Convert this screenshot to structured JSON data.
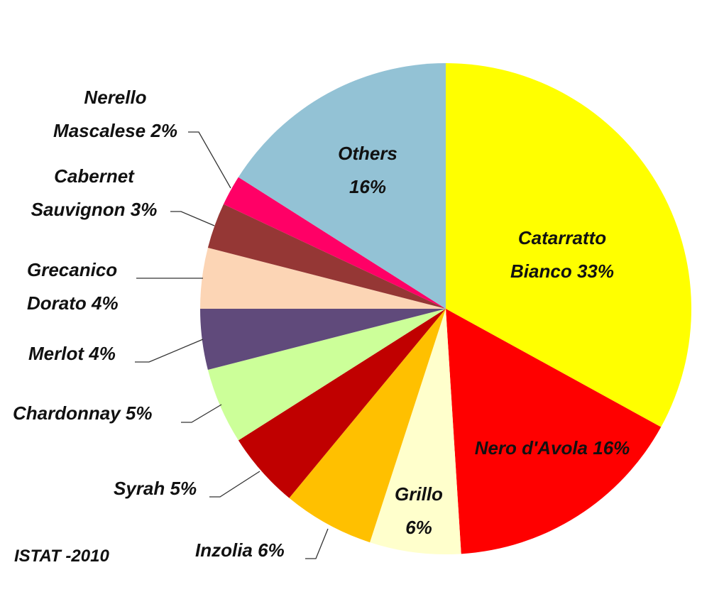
{
  "chart_data": {
    "type": "pie",
    "categories": [
      "Catarratto Bianco",
      "Nero d'Avola",
      "Grillo",
      "Inzolia",
      "Syrah",
      "Chardonnay",
      "Merlot",
      "Grecanico Dorato",
      "Cabernet Sauvignon",
      "Nerello Mascalese",
      "Others"
    ],
    "values": [
      33,
      16,
      6,
      6,
      5,
      5,
      4,
      4,
      3,
      2,
      16
    ],
    "value_labels": [
      "33%",
      "16%",
      "6%",
      "6%",
      "5%",
      "5%",
      "4%",
      "4%",
      "3%",
      "2%",
      "16%"
    ],
    "colors": [
      "#ffff00",
      "#ff0000",
      "#ffffcc",
      "#ffc000",
      "#c00000",
      "#ccff99",
      "#604a7b",
      "#fcd5b5",
      "#953735",
      "#ff0066",
      "#93c2d5"
    ],
    "source": "ISTAT -2010"
  }
}
